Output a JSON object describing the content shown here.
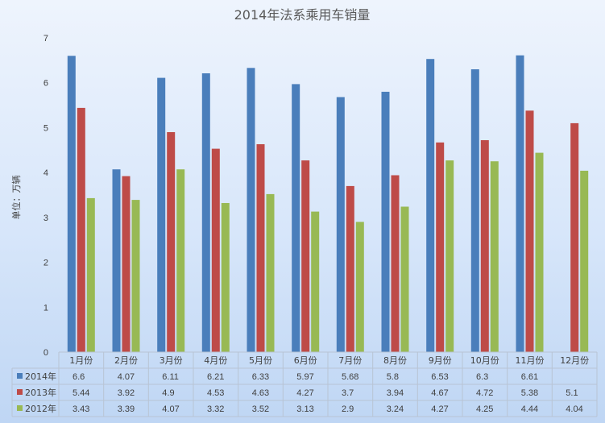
{
  "chart_data": {
    "type": "bar",
    "title": "2014年法系乘用车销量",
    "ylabel": "单位：万辆",
    "xlabel": "",
    "ylim": [
      0,
      7
    ],
    "yticks": [
      0,
      1,
      2,
      3,
      4,
      5,
      6,
      7
    ],
    "grid": false,
    "legend": "data-table-left",
    "categories": [
      "1月份",
      "2月份",
      "3月份",
      "4月份",
      "5月份",
      "6月份",
      "7月份",
      "8月份",
      "9月份",
      "10月份",
      "11月份",
      "12月份"
    ],
    "series": [
      {
        "name": "2014年",
        "color": "#4a7ebb",
        "values": [
          6.6,
          4.07,
          6.11,
          6.21,
          6.33,
          5.97,
          5.68,
          5.8,
          6.53,
          6.3,
          6.61,
          null
        ]
      },
      {
        "name": "2013年",
        "color": "#be4b48",
        "values": [
          5.44,
          3.92,
          4.9,
          4.53,
          4.63,
          4.27,
          3.7,
          3.94,
          4.67,
          4.72,
          5.38,
          5.1
        ]
      },
      {
        "name": "2012年",
        "color": "#98b954",
        "values": [
          3.43,
          3.39,
          4.07,
          3.32,
          3.52,
          3.13,
          2.9,
          3.24,
          4.27,
          4.25,
          4.44,
          4.04
        ]
      }
    ],
    "table_display": [
      [
        "6.6",
        "4.07",
        "6.11",
        "6.21",
        "6.33",
        "5.97",
        "5.68",
        "5.8",
        "6.53",
        "6.3",
        "6.61",
        ""
      ],
      [
        "5.44",
        "3.92",
        "4.9",
        "4.53",
        "4.63",
        "4.27",
        "3.7",
        "3.94",
        "4.67",
        "4.72",
        "5.38",
        "5.1"
      ],
      [
        "3.43",
        "3.39",
        "4.07",
        "3.32",
        "3.52",
        "3.13",
        "2.9",
        "3.24",
        "4.27",
        "4.25",
        "4.44",
        "4.04"
      ]
    ]
  }
}
